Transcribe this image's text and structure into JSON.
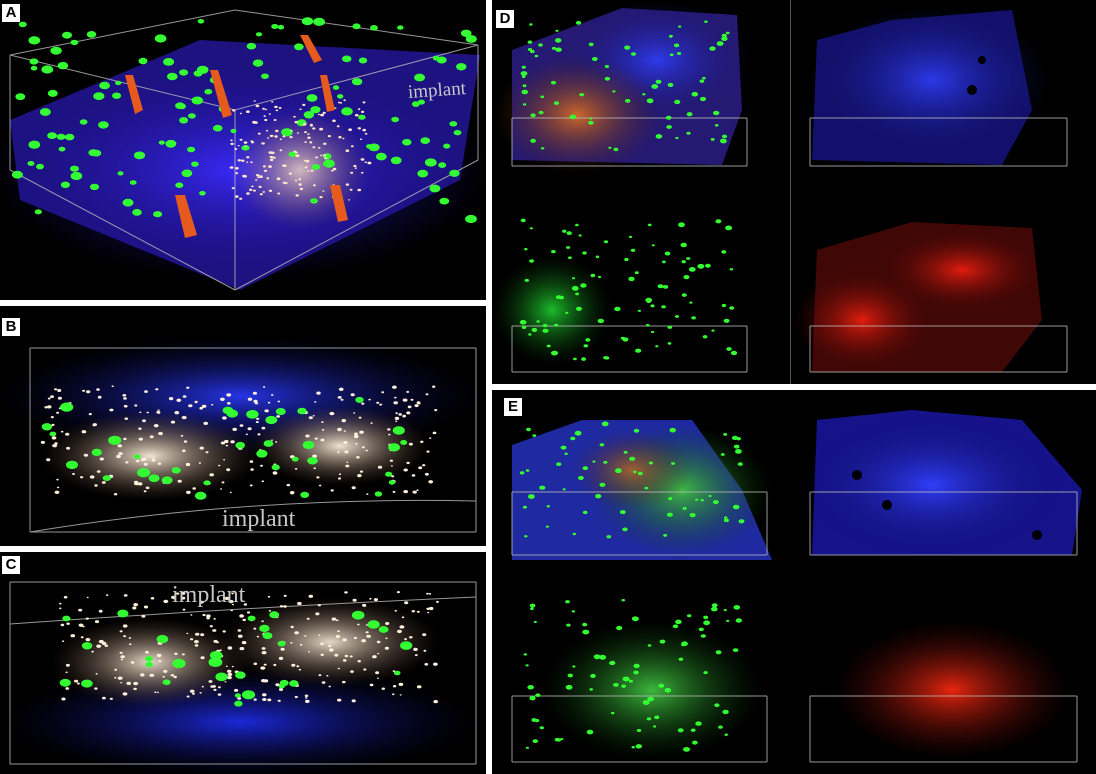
{
  "figure": {
    "panels": [
      {
        "id": "A",
        "label": "A",
        "implant_label": "implant"
      },
      {
        "id": "B",
        "label": "B",
        "implant_label": "implant"
      },
      {
        "id": "C",
        "label": "C",
        "implant_label": "implant"
      },
      {
        "id": "D",
        "label": "D",
        "subpanels": [
          "merged",
          "blue-channel",
          "green-channel",
          "red-channel"
        ]
      },
      {
        "id": "E",
        "label": "E",
        "subpanels": [
          "merged",
          "blue-channel",
          "green-channel",
          "red-channel"
        ]
      }
    ],
    "colors": {
      "background": "#000000",
      "nuclei_blue": "#2a2aff",
      "cells_green": "#30ff30",
      "cells_red": "#ff2a10",
      "particles_white": "#ffe6c8",
      "box_lines": "#bdbdbd"
    }
  }
}
